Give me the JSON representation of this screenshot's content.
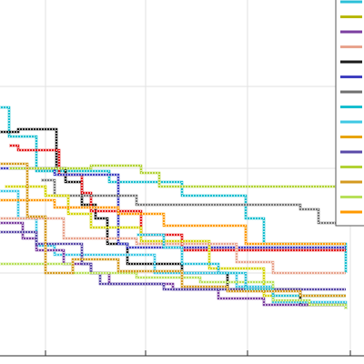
{
  "chart_data": {
    "type": "line",
    "step": true,
    "title": "",
    "xlabel": "",
    "ylabel": "",
    "grid": true,
    "legend": "right",
    "xlim": [
      0,
      400
    ],
    "ylim": [
      0,
      400
    ],
    "x_ticks": [
      50,
      160,
      272,
      385
    ],
    "y_grid": [
      95,
      185,
      300
    ],
    "series": [
      {
        "color": "#17becf",
        "points": [
          [
            0,
            118
          ],
          [
            10,
            118
          ],
          [
            10,
            150
          ],
          [
            40,
            150
          ],
          [
            40,
            188
          ],
          [
            120,
            188
          ],
          [
            120,
            200
          ],
          [
            200,
            200
          ],
          [
            200,
            215
          ],
          [
            270,
            215
          ],
          [
            270,
            240
          ],
          [
            290,
            240
          ],
          [
            290,
            268
          ],
          [
            380,
            268
          ],
          [
            380,
            300
          ]
        ]
      },
      {
        "color": "#1a1a1a",
        "points": [
          [
            0,
            145
          ],
          [
            20,
            145
          ],
          [
            20,
            142
          ],
          [
            62,
            142
          ],
          [
            62,
            185
          ],
          [
            72,
            185
          ],
          [
            72,
            200
          ],
          [
            90,
            200
          ],
          [
            90,
            225
          ],
          [
            105,
            225
          ],
          [
            105,
            240
          ],
          [
            118,
            240
          ],
          [
            118,
            268
          ],
          [
            140,
            268
          ],
          [
            140,
            290
          ],
          [
            200,
            290
          ],
          [
            200,
            300
          ],
          [
            250,
            300
          ],
          [
            250,
            318
          ],
          [
            330,
            318
          ],
          [
            330,
            335
          ],
          [
            380,
            335
          ]
        ]
      },
      {
        "color": "#e41a1c",
        "points": [
          [
            10,
            160
          ],
          [
            20,
            160
          ],
          [
            20,
            165
          ],
          [
            65,
            165
          ],
          [
            65,
            192
          ],
          [
            90,
            192
          ],
          [
            90,
            212
          ],
          [
            100,
            212
          ],
          [
            100,
            232
          ],
          [
            155,
            232
          ],
          [
            155,
            258
          ],
          [
            200,
            258
          ],
          [
            200,
            275
          ],
          [
            380,
            275
          ]
        ]
      },
      {
        "color": "#4040c0",
        "points": [
          [
            0,
            185
          ],
          [
            60,
            185
          ],
          [
            60,
            192
          ],
          [
            130,
            192
          ],
          [
            130,
            268
          ],
          [
            140,
            268
          ],
          [
            140,
            272
          ],
          [
            380,
            272
          ]
        ]
      },
      {
        "color": "#b2d235",
        "points": [
          [
            10,
            185
          ],
          [
            100,
            185
          ],
          [
            100,
            182
          ],
          [
            155,
            182
          ],
          [
            155,
            190
          ],
          [
            175,
            190
          ],
          [
            175,
            205
          ],
          [
            370,
            205
          ],
          [
            370,
            235
          ]
        ]
      },
      {
        "color": "#777777",
        "points": [
          [
            45,
            198
          ],
          [
            60,
            198
          ],
          [
            60,
            215
          ],
          [
            150,
            215
          ],
          [
            150,
            225
          ],
          [
            330,
            225
          ],
          [
            330,
            230
          ],
          [
            350,
            230
          ],
          [
            350,
            245
          ],
          [
            380,
            245
          ]
        ]
      },
      {
        "color": "#d4d400",
        "points": [
          [
            5,
            205
          ],
          [
            50,
            205
          ],
          [
            50,
            215
          ],
          [
            75,
            215
          ],
          [
            75,
            235
          ],
          [
            100,
            235
          ],
          [
            100,
            250
          ],
          [
            155,
            250
          ],
          [
            155,
            265
          ],
          [
            230,
            265
          ],
          [
            230,
            295
          ],
          [
            290,
            295
          ],
          [
            290,
            325
          ],
          [
            380,
            325
          ]
        ]
      },
      {
        "color": "#3fc8e4",
        "points": [
          [
            0,
            210
          ],
          [
            20,
            210
          ],
          [
            20,
            240
          ],
          [
            40,
            240
          ],
          [
            40,
            270
          ],
          [
            60,
            270
          ],
          [
            60,
            280
          ],
          [
            170,
            280
          ],
          [
            170,
            300
          ],
          [
            260,
            300
          ],
          [
            260,
            315
          ],
          [
            300,
            315
          ],
          [
            300,
            332
          ],
          [
            380,
            332
          ],
          [
            380,
            340
          ]
        ]
      },
      {
        "color": "#ff9900",
        "points": [
          [
            0,
            220
          ],
          [
            60,
            220
          ],
          [
            60,
            228
          ],
          [
            130,
            228
          ],
          [
            130,
            235
          ],
          [
            180,
            235
          ],
          [
            180,
            248
          ],
          [
            270,
            248
          ],
          [
            270,
            268
          ],
          [
            380,
            268
          ]
        ]
      },
      {
        "color": "#e8a48e",
        "points": [
          [
            0,
            240
          ],
          [
            70,
            240
          ],
          [
            70,
            262
          ],
          [
            150,
            262
          ],
          [
            150,
            268
          ],
          [
            260,
            268
          ],
          [
            260,
            288
          ],
          [
            300,
            288
          ],
          [
            300,
            300
          ],
          [
            380,
            300
          ]
        ]
      },
      {
        "color": "#7b3fa0",
        "points": [
          [
            0,
            245
          ],
          [
            25,
            245
          ],
          [
            25,
            262
          ],
          [
            40,
            262
          ],
          [
            40,
            275
          ],
          [
            70,
            275
          ],
          [
            70,
            290
          ],
          [
            100,
            290
          ],
          [
            100,
            300
          ],
          [
            120,
            300
          ],
          [
            120,
            312
          ],
          [
            190,
            312
          ],
          [
            190,
            318
          ],
          [
            240,
            318
          ],
          [
            240,
            328
          ],
          [
            290,
            328
          ],
          [
            290,
            335
          ],
          [
            380,
            335
          ]
        ]
      },
      {
        "color": "#5a4aa8",
        "points": [
          [
            0,
            255
          ],
          [
            40,
            255
          ],
          [
            40,
            268
          ],
          [
            90,
            268
          ],
          [
            90,
            290
          ],
          [
            100,
            290
          ],
          [
            100,
            300
          ],
          [
            110,
            300
          ],
          [
            110,
            312
          ],
          [
            180,
            312
          ],
          [
            180,
            318
          ],
          [
            380,
            318
          ]
        ]
      },
      {
        "color": "#b8e05a",
        "points": [
          [
            0,
            290
          ],
          [
            80,
            290
          ],
          [
            80,
            300
          ],
          [
            150,
            300
          ],
          [
            150,
            305
          ],
          [
            220,
            305
          ],
          [
            220,
            310
          ],
          [
            300,
            310
          ],
          [
            300,
            330
          ],
          [
            340,
            330
          ],
          [
            340,
            335
          ],
          [
            380,
            335
          ],
          [
            380,
            340
          ]
        ]
      },
      {
        "color": "#2bc0d8",
        "points": [
          [
            150,
            258
          ],
          [
            180,
            258
          ],
          [
            180,
            272
          ],
          [
            200,
            272
          ],
          [
            200,
            290
          ],
          [
            240,
            290
          ],
          [
            240,
            300
          ],
          [
            270,
            300
          ],
          [
            270,
            318
          ],
          [
            300,
            318
          ],
          [
            300,
            325
          ],
          [
            380,
            325
          ]
        ]
      },
      {
        "color": "#d49a20",
        "points": [
          [
            0,
            180
          ],
          [
            30,
            180
          ],
          [
            30,
            238
          ],
          [
            50,
            238
          ],
          [
            50,
            300
          ],
          [
            80,
            300
          ],
          [
            80,
            285
          ],
          [
            130,
            285
          ],
          [
            130,
            298
          ],
          [
            200,
            298
          ],
          [
            200,
            315
          ],
          [
            250,
            315
          ],
          [
            250,
            320
          ],
          [
            330,
            320
          ],
          [
            330,
            325
          ],
          [
            380,
            325
          ]
        ]
      }
    ],
    "legend_entries": [
      {
        "color": "#2bc0d8"
      },
      {
        "color": "#b8b800"
      },
      {
        "color": "#7b3fa0"
      },
      {
        "color": "#e8a48e"
      },
      {
        "color": "#1a1a1a"
      },
      {
        "color": "#4040c0"
      },
      {
        "color": "#707070"
      },
      {
        "color": "#17becf"
      },
      {
        "color": "#3fc8e4"
      },
      {
        "color": "#e8a400"
      },
      {
        "color": "#5a4aa8"
      },
      {
        "color": "#b2d235"
      },
      {
        "color": "#d49a20"
      },
      {
        "color": "#b8e05a"
      },
      {
        "color": "#ff9900"
      }
    ]
  }
}
